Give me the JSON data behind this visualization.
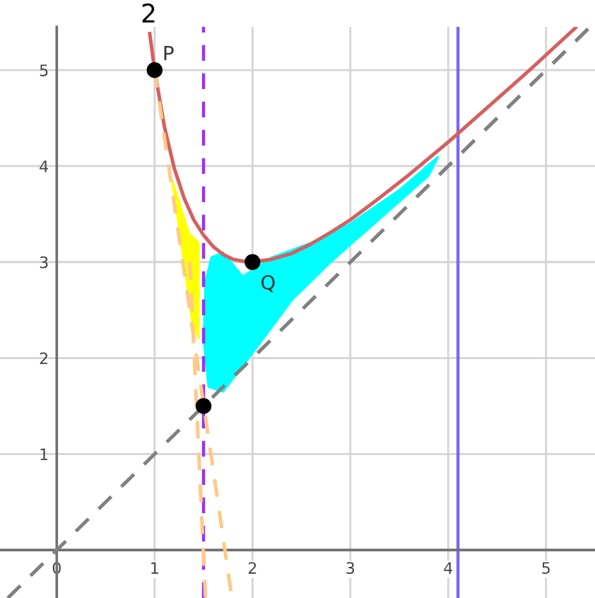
{
  "chart_data": {
    "type": "line",
    "annotations": [
      "2",
      {
        "text": "P",
        "x": 1,
        "y": 5
      },
      {
        "text": "Q",
        "x": 2,
        "y": 3
      }
    ],
    "xlim": [
      -0.58,
      5.5
    ],
    "ylim": [
      -0.5,
      5.45
    ],
    "xticks": [
      0,
      1,
      2,
      3,
      4,
      5
    ],
    "yticks": [
      1,
      2,
      3,
      4,
      5
    ],
    "grid": true,
    "legend": false,
    "ref_lines": [
      {
        "axis": "x",
        "value": 1.5,
        "color": "#9b30ff",
        "line_style": "dashed"
      },
      {
        "axis": "x",
        "value": 4.1,
        "color": "#7b68ee",
        "line_style": "solid"
      }
    ],
    "series": [
      {
        "color": "#d65f5f",
        "line_style": "solid",
        "marker": "none",
        "x": [
          0.95,
          1,
          1.1,
          1.2,
          1.3,
          1.4,
          1.5,
          1.6,
          1.7,
          1.8,
          1.9,
          2,
          2.2,
          2.4,
          2.6,
          2.8,
          3,
          3.3,
          3.6,
          4,
          4.4,
          4.8,
          5.3
        ],
        "values": [
          5.38,
          5,
          4.41,
          3.98,
          3.67,
          3.44,
          3.28,
          3.16,
          3.08,
          3.03,
          3.01,
          3,
          3.03,
          3.09,
          3.19,
          3.31,
          3.44,
          3.67,
          3.91,
          4.25,
          4.61,
          4.97,
          5.44
        ]
      },
      {
        "color": "#808080",
        "line_style": "dashed",
        "marker": "none",
        "x": [
          -0.5,
          5.45
        ],
        "values": [
          -0.5,
          5.45
        ]
      },
      {
        "color": "#ffc987",
        "line_style": "dashed",
        "marker": "none",
        "x": [
          1,
          1.79
        ],
        "values": [
          5,
          -0.5
        ]
      },
      {
        "color": "#ffc987",
        "line_style": "dashed",
        "marker": "none",
        "x": [
          1.36,
          1.52
        ],
        "values": [
          3.0,
          -0.5
        ]
      },
      {
        "type": "scatter",
        "color": "#000000",
        "marker": "circle",
        "x": [
          1,
          2,
          1.5
        ],
        "values": [
          5,
          3,
          1.5
        ]
      }
    ]
  }
}
